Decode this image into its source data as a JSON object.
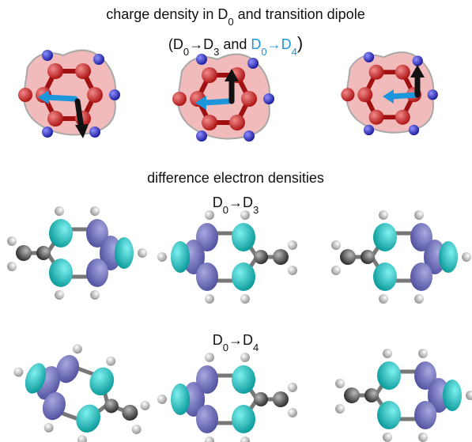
{
  "header": {
    "line1": [
      {
        "base": "charge density in D",
        "sub": "0"
      },
      {
        "base": " and transition dipole"
      }
    ],
    "line2": {
      "black": [
        {
          "base": "(D",
          "sub": "0"
        },
        {
          "base": "→D",
          "sub": "3"
        },
        {
          "base": " and "
        }
      ],
      "blue": [
        {
          "base": "D",
          "sub": "0"
        },
        {
          "base": "→D",
          "sub": "4"
        }
      ],
      "close": ")"
    }
  },
  "section": {
    "title": "difference electron densities",
    "row1": [
      {
        "base": "D",
        "sub": "0"
      },
      {
        "base": "→D",
        "sub": "3"
      }
    ],
    "row2": [
      {
        "base": "D",
        "sub": "0"
      },
      {
        "base": "→D",
        "sub": "4"
      }
    ]
  }
}
